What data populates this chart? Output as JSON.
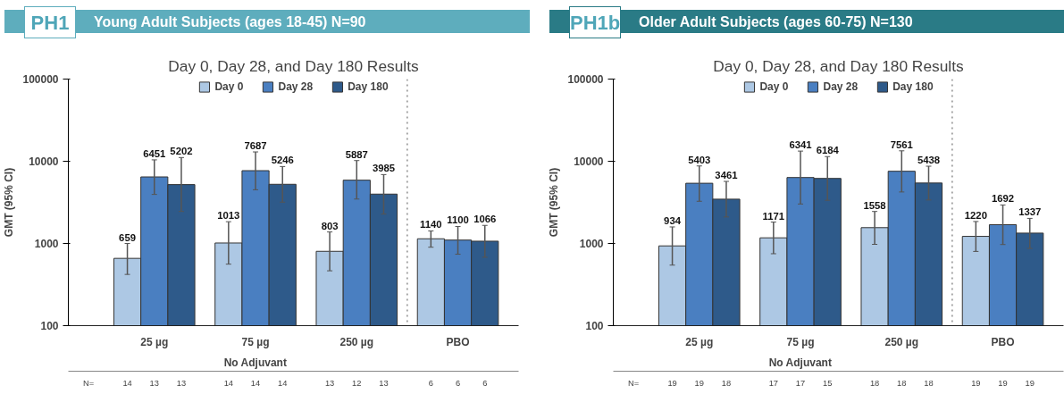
{
  "chart_data": [
    {
      "type": "bar",
      "title": "Young Adult Subjects (ages 18-45)  N=90",
      "subtitle": "Day 0, Day 28, and Day 180 Results",
      "ylabel": "GMT (95% CI)",
      "categories": [
        "25 µg",
        "75 µg",
        "250 µg",
        "PBO"
      ],
      "log": true,
      "ylim": [
        100,
        100000
      ],
      "yticks": [
        100,
        1000,
        10000,
        100000
      ],
      "grid": false,
      "legend": "top",
      "data_labels": true,
      "series": [
        {
          "name": "Day 0",
          "color": "#adc8e4",
          "values": [
            659,
            1013,
            803,
            1140
          ],
          "errors": [
            [
              420,
              1000
            ],
            [
              560,
              1840
            ],
            [
              465,
              1380
            ],
            [
              900,
              1420
            ]
          ]
        },
        {
          "name": "Day 28",
          "color": "#4a7fc1",
          "values": [
            6451,
            7687,
            5887,
            1100
          ],
          "errors": [
            [
              3950,
              10400
            ],
            [
              4500,
              13000
            ],
            [
              3470,
              10200
            ],
            [
              740,
              1610
            ]
          ]
        },
        {
          "name": "Day 180",
          "color": "#2e5a8a",
          "values": [
            5202,
            5246,
            3985,
            1066
          ],
          "errors": [
            [
              2450,
              11100
            ],
            [
              3180,
              8630
            ],
            [
              2280,
              6890
            ],
            [
              680,
              1660
            ]
          ]
        }
      ],
      "annotations": [
        "PH1",
        "No Adjuvant",
        "N=",
        "14",
        "13",
        "13",
        "14",
        "14",
        "14",
        "13",
        "12",
        "13",
        "6",
        "6",
        "6"
      ]
    },
    {
      "type": "bar",
      "title": "Older Adult Subjects (ages 60-75)  N=130",
      "subtitle": "Day 0, Day 28, and Day 180 Results",
      "ylabel": "GMT (95% CI)",
      "categories": [
        "25 µg",
        "75 µg",
        "250 µg",
        "PBO"
      ],
      "log": true,
      "ylim": [
        100,
        100000
      ],
      "yticks": [
        100,
        1000,
        10000,
        100000
      ],
      "grid": false,
      "legend": "top",
      "data_labels": true,
      "series": [
        {
          "name": "Day 0",
          "color": "#adc8e4",
          "values": [
            934,
            1171,
            1558,
            1220
          ],
          "errors": [
            [
              545,
              1590
            ],
            [
              750,
              1820
            ],
            [
              975,
              2450
            ],
            [
              800,
              1850
            ]
          ]
        },
        {
          "name": "Day 28",
          "color": "#4a7fc1",
          "values": [
            5403,
            6341,
            7561,
            1692
          ],
          "errors": [
            [
              3260,
              8770
            ],
            [
              3020,
              13300
            ],
            [
              4230,
              13400
            ],
            [
              970,
              2940
            ]
          ]
        },
        {
          "name": "Day 180",
          "color": "#2e5a8a",
          "values": [
            3461,
            6184,
            5438,
            1337
          ],
          "errors": [
            [
              2100,
              5690
            ],
            [
              3350,
              11400
            ],
            [
              3380,
              8710
            ],
            [
              870,
              2020
            ]
          ]
        }
      ],
      "annotations": [
        "PH1b",
        "No Adjuvant",
        "N=",
        "19",
        "19",
        "18",
        "17",
        "17",
        "15",
        "18",
        "18",
        "18",
        "19",
        "19",
        "19"
      ]
    }
  ]
}
